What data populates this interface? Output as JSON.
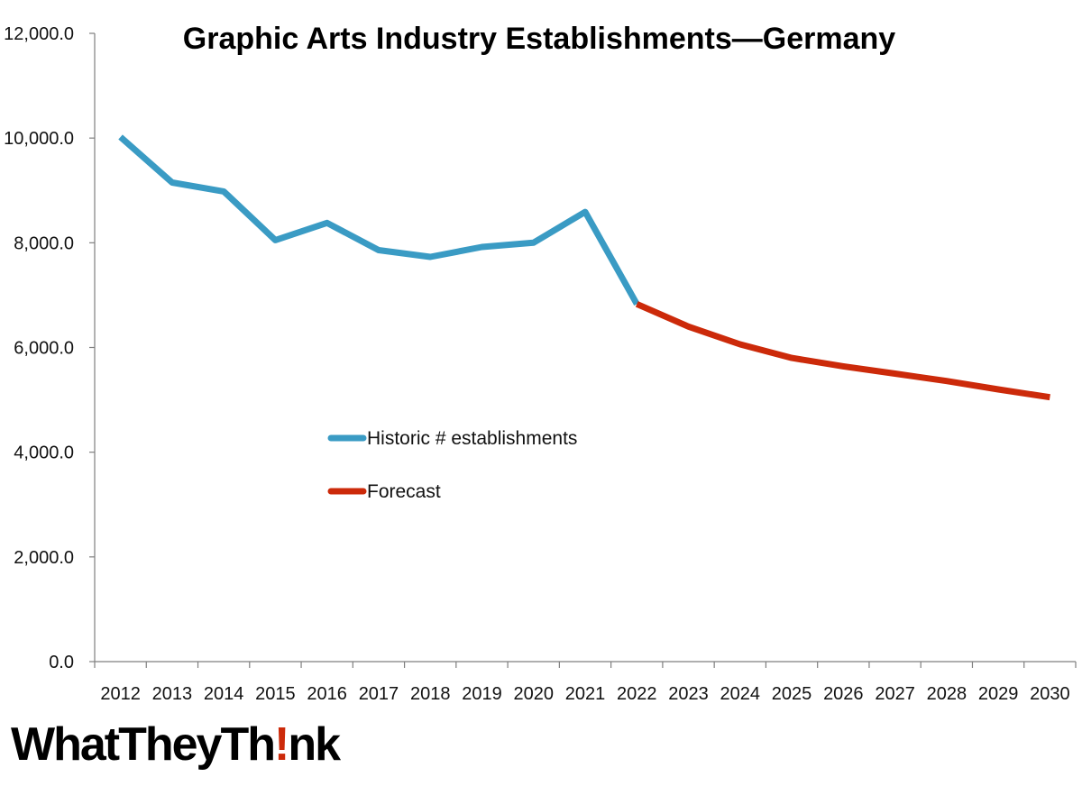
{
  "chart_data": {
    "type": "line",
    "title": "Graphic Arts Industry Establishments—Germany",
    "xlabel": "",
    "ylabel": "",
    "categories": [
      "2012",
      "2013",
      "2014",
      "2015",
      "2016",
      "2017",
      "2018",
      "2019",
      "2020",
      "2021",
      "2022",
      "2023",
      "2024",
      "2025",
      "2026",
      "2027",
      "2028",
      "2029",
      "2030"
    ],
    "ylim": [
      0,
      12000
    ],
    "yticks": [
      "0.0",
      "2,000.0",
      "4,000.0",
      "6,000.0",
      "8,000.0",
      "10,000.0",
      "12,000.0"
    ],
    "grid": false,
    "legend_position": "center-left",
    "series": [
      {
        "name": "Historic # establishments",
        "color": "#3a9bc4",
        "values": [
          10020,
          9150,
          8980,
          8050,
          8380,
          7860,
          7730,
          7920,
          8000,
          8590,
          6830,
          null,
          null,
          null,
          null,
          null,
          null,
          null,
          null
        ]
      },
      {
        "name": "Forecast",
        "color": "#cc2a0a",
        "values": [
          null,
          null,
          null,
          null,
          null,
          null,
          null,
          null,
          null,
          null,
          6830,
          6400,
          6060,
          5800,
          5640,
          5500,
          5360,
          5200,
          5050
        ]
      }
    ]
  },
  "logo": {
    "prefix": "WhatTheyTh",
    "accent": "!",
    "suffix": "nk",
    "accent_color": "#cc2a0a"
  }
}
